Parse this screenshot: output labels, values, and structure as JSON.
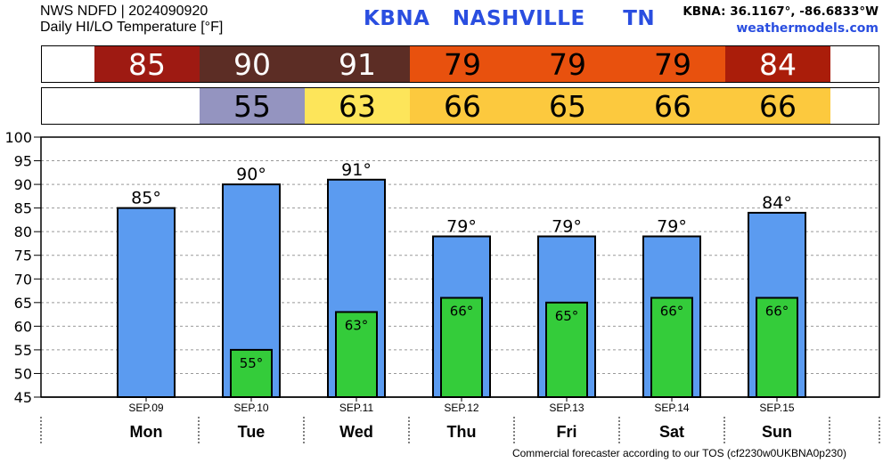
{
  "header": {
    "line1": "NWS NDFD | 2024090920",
    "line2": "Daily HI/LO Temperature [°F]",
    "station": "KBNA   NASHVILLE     TN",
    "coords": "KBNA: 36.1167°, -86.6833°W",
    "site": "weathermodels.com"
  },
  "hi_tiles": [
    {
      "value": "85",
      "color": "#9e1a12",
      "text_color": "#ffffff"
    },
    {
      "value": "90",
      "color": "#5c2d25",
      "text_color": "#ffffff"
    },
    {
      "value": "91",
      "color": "#5c2d25",
      "text_color": "#ffffff"
    },
    {
      "value": "79",
      "color": "#e8510e",
      "text_color": "#000000"
    },
    {
      "value": "79",
      "color": "#e8510e",
      "text_color": "#000000"
    },
    {
      "value": "79",
      "color": "#e8510e",
      "text_color": "#000000"
    },
    {
      "value": "84",
      "color": "#aa1d0a",
      "text_color": "#ffffff"
    }
  ],
  "lo_tiles": [
    {
      "value": "",
      "color": "#ffffff",
      "text_color": "#000000"
    },
    {
      "value": "55",
      "color": "#9494c0",
      "text_color": "#000000"
    },
    {
      "value": "63",
      "color": "#fde55a",
      "text_color": "#000000"
    },
    {
      "value": "66",
      "color": "#fcc93e",
      "text_color": "#000000"
    },
    {
      "value": "65",
      "color": "#fcc93e",
      "text_color": "#000000"
    },
    {
      "value": "66",
      "color": "#fcc93e",
      "text_color": "#000000"
    },
    {
      "value": "66",
      "color": "#fcc93e",
      "text_color": "#000000"
    }
  ],
  "chart_data": {
    "type": "bar",
    "categories": [
      "Mon",
      "Tue",
      "Wed",
      "Thu",
      "Fri",
      "Sat",
      "Sun"
    ],
    "dates": [
      "SEP.09",
      "SEP.10",
      "SEP.11",
      "SEP.12",
      "SEP.13",
      "SEP.14",
      "SEP.15"
    ],
    "series": [
      {
        "values": [
          85,
          90,
          91,
          79,
          79,
          79,
          84
        ],
        "color": "#5b9bf0",
        "labels": [
          "85°",
          "90°",
          "91°",
          "79°",
          "79°",
          "79°",
          "84°"
        ]
      },
      {
        "values": [
          null,
          55,
          63,
          66,
          65,
          66,
          66
        ],
        "color": "#34cc3a",
        "labels": [
          "",
          "55°",
          "63°",
          "66°",
          "65°",
          "66°",
          "66°"
        ]
      }
    ],
    "ylim": [
      45,
      100
    ],
    "yticks": [
      45,
      50,
      55,
      60,
      65,
      70,
      75,
      80,
      85,
      90,
      95,
      100
    ],
    "grid": true
  },
  "footer": "Commercial forecaster according to our TOS (cf2230w0UKBNA0p230)"
}
